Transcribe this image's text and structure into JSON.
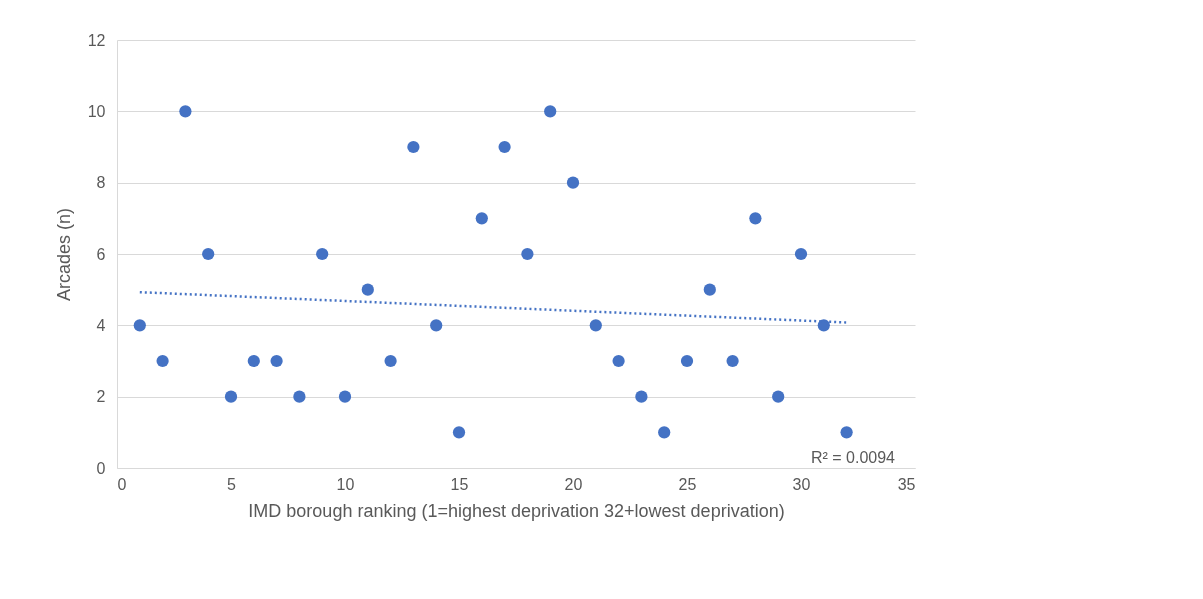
{
  "chart_data": {
    "type": "scatter",
    "xlabel": "IMD borough ranking (1=highest deprivation 32+lowest deprivation)",
    "ylabel": "Arcades (n)",
    "xlim": [
      0,
      35
    ],
    "xticks": [
      0,
      5,
      10,
      15,
      20,
      25,
      30,
      35
    ],
    "ylim": [
      0,
      12
    ],
    "yticks": [
      0,
      2,
      4,
      6,
      8,
      10,
      12
    ],
    "grid": "y",
    "series": [
      {
        "color": "#4472c4",
        "marker": "circle",
        "x": [
          1,
          2,
          3,
          4,
          5,
          6,
          7,
          8,
          9,
          10,
          11,
          12,
          13,
          14,
          15,
          16,
          17,
          18,
          19,
          20,
          21,
          22,
          23,
          24,
          25,
          26,
          27,
          28,
          29,
          30,
          31,
          32
        ],
        "values": [
          4,
          3,
          10,
          6,
          2,
          3,
          3,
          2,
          6,
          2,
          5,
          3,
          9,
          4,
          1,
          7,
          9,
          6,
          10,
          8,
          4,
          3,
          2,
          1,
          3,
          5,
          3,
          7,
          2,
          6,
          4,
          1
        ]
      },
      {
        "type": "line",
        "color": "#4472c4",
        "line_style": "dotted",
        "marker": "none",
        "x": [
          1,
          32
        ],
        "values": [
          4.93,
          4.08
        ]
      }
    ],
    "annotations": [
      "R² = 0.0094"
    ]
  }
}
